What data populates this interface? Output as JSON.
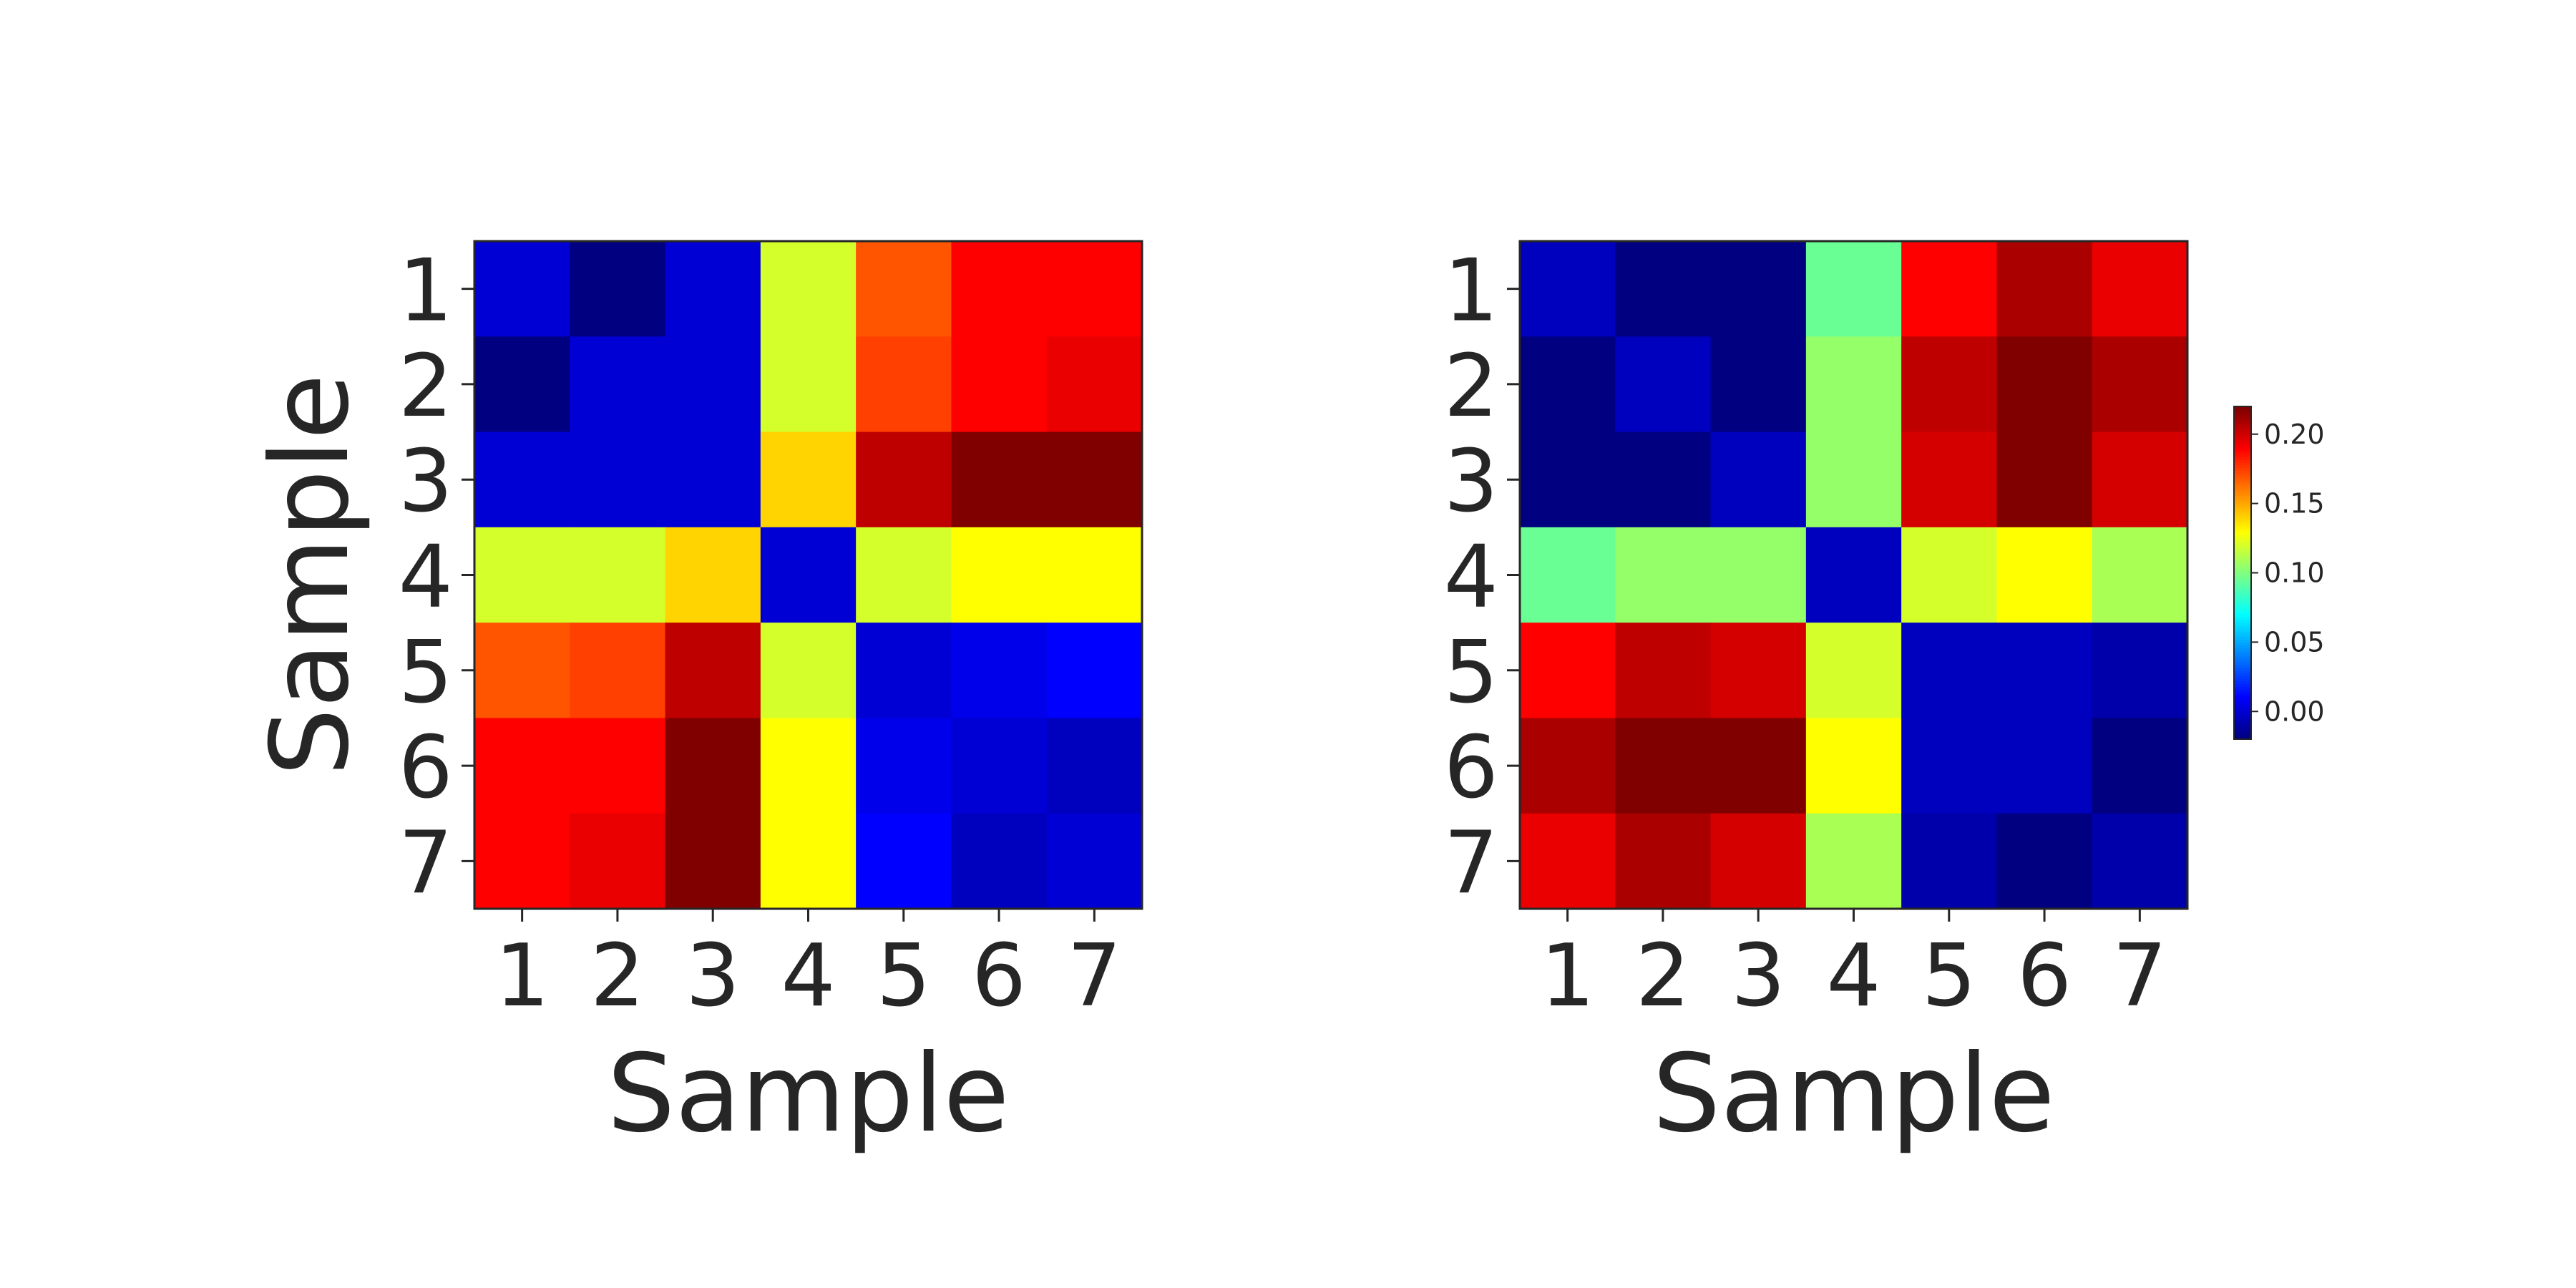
{
  "chart_data": [
    {
      "type": "heatmap",
      "xlabel": "Sample",
      "ylabel": "Sample",
      "x_categories": [
        "1",
        "2",
        "3",
        "4",
        "5",
        "6",
        "7"
      ],
      "y_categories": [
        "1",
        "2",
        "3",
        "4",
        "5",
        "6",
        "7"
      ],
      "colormap": "jet",
      "vmin": -0.02,
      "vmax": 0.22,
      "values": [
        [
          0.0,
          -0.02,
          0.0,
          0.12,
          0.17,
          0.19,
          0.19
        ],
        [
          -0.02,
          0.0,
          0.0,
          0.12,
          0.175,
          0.19,
          0.195
        ],
        [
          0.0,
          0.0,
          0.0,
          0.14,
          0.205,
          0.22,
          0.22
        ],
        [
          0.12,
          0.12,
          0.14,
          0.0,
          0.12,
          0.13,
          0.13
        ],
        [
          0.17,
          0.175,
          0.205,
          0.12,
          0.0,
          0.005,
          0.01
        ],
        [
          0.19,
          0.19,
          0.22,
          0.13,
          0.005,
          0.0,
          -0.005
        ],
        [
          0.19,
          0.195,
          0.22,
          0.13,
          0.01,
          -0.005,
          0.0
        ]
      ]
    },
    {
      "type": "heatmap",
      "xlabel": "Sample",
      "ylabel": "",
      "x_categories": [
        "1",
        "2",
        "3",
        "4",
        "5",
        "6",
        "7"
      ],
      "y_categories": [
        "1",
        "2",
        "3",
        "4",
        "5",
        "6",
        "7"
      ],
      "colormap": "jet",
      "vmin": -0.02,
      "vmax": 0.22,
      "colorbar": {
        "ticks": [
          0.0,
          0.05,
          0.1,
          0.15,
          0.2
        ],
        "tick_labels": [
          "0.00",
          "0.05",
          "0.10",
          "0.15",
          "0.20"
        ]
      },
      "values": [
        [
          -0.005,
          -0.02,
          -0.02,
          0.095,
          0.19,
          0.21,
          0.195
        ],
        [
          -0.02,
          -0.005,
          -0.02,
          0.105,
          0.205,
          0.22,
          0.21
        ],
        [
          -0.02,
          -0.02,
          -0.005,
          0.105,
          0.2,
          0.22,
          0.2
        ],
        [
          0.095,
          0.105,
          0.105,
          -0.005,
          0.12,
          0.13,
          0.11
        ],
        [
          0.19,
          0.205,
          0.2,
          0.12,
          -0.005,
          -0.005,
          -0.01
        ],
        [
          0.21,
          0.22,
          0.22,
          0.13,
          -0.005,
          -0.005,
          -0.02
        ],
        [
          0.195,
          0.21,
          0.2,
          0.11,
          -0.01,
          -0.02,
          -0.01
        ]
      ]
    }
  ]
}
